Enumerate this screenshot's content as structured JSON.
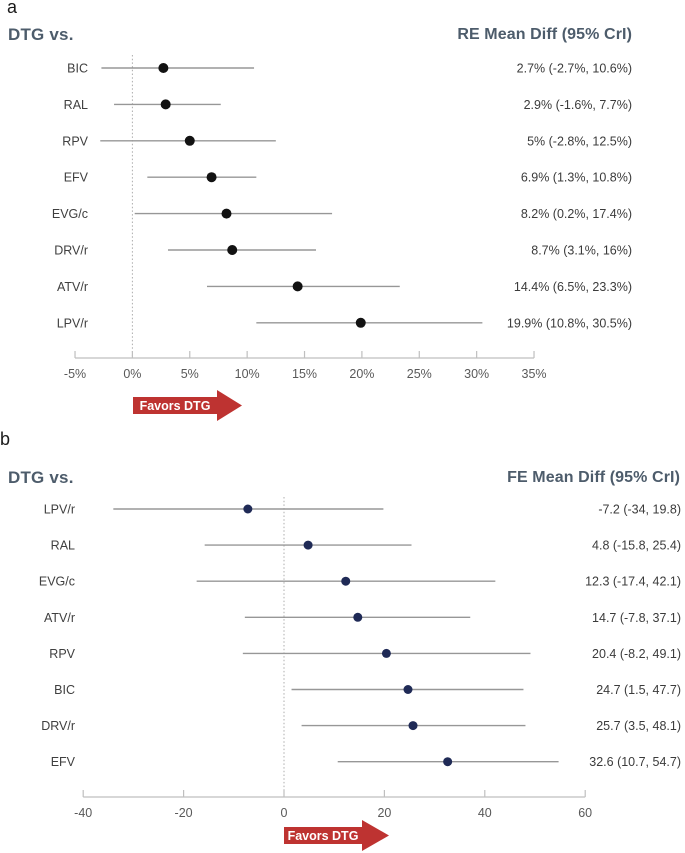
{
  "chart_data": [
    {
      "id": "a",
      "type": "scatter",
      "panel_label": "a",
      "title": "DTG vs.",
      "header": "RE Mean Diff (95% CrI)",
      "favors_label": "Favors DTG",
      "xlim": [
        -5,
        35
      ],
      "tick_labels": [
        "-5%",
        "0%",
        "5%",
        "10%",
        "15%",
        "20%",
        "25%",
        "30%",
        "35%"
      ],
      "zero_line": 0,
      "legend_position": "none",
      "grid": false,
      "rows": [
        {
          "label": "BIC",
          "mean": 2.7,
          "lo": -2.7,
          "hi": 10.6,
          "value_text": "2.7% (-2.7%, 10.6%)"
        },
        {
          "label": "RAL",
          "mean": 2.9,
          "lo": -1.6,
          "hi": 7.7,
          "value_text": "2.9% (-1.6%, 7.7%)"
        },
        {
          "label": "RPV",
          "mean": 5.0,
          "lo": -2.8,
          "hi": 12.5,
          "value_text": "5% (-2.8%, 12.5%)"
        },
        {
          "label": "EFV",
          "mean": 6.9,
          "lo": 1.3,
          "hi": 10.8,
          "value_text": "6.9% (1.3%, 10.8%)"
        },
        {
          "label": "EVG/c",
          "mean": 8.2,
          "lo": 0.2,
          "hi": 17.4,
          "value_text": "8.2% (0.2%, 17.4%)"
        },
        {
          "label": "DRV/r",
          "mean": 8.7,
          "lo": 3.1,
          "hi": 16.0,
          "value_text": "8.7% (3.1%, 16%)"
        },
        {
          "label": "ATV/r",
          "mean": 14.4,
          "lo": 6.5,
          "hi": 23.3,
          "value_text": "14.4% (6.5%, 23.3%)"
        },
        {
          "label": "LPV/r",
          "mean": 19.9,
          "lo": 10.8,
          "hi": 30.5,
          "value_text": "19.9% (10.8%, 30.5%)"
        }
      ]
    },
    {
      "id": "b",
      "type": "scatter",
      "panel_label": "b",
      "title": "DTG vs.",
      "header": "FE Mean Diff (95% CrI)",
      "favors_label": "Favors DTG",
      "xlim": [
        -40,
        60
      ],
      "tick_labels": [
        "-40",
        "-20",
        "0",
        "20",
        "40",
        "60"
      ],
      "zero_line": 0,
      "legend_position": "none",
      "grid": false,
      "rows": [
        {
          "label": "LPV/r",
          "mean": -7.2,
          "lo": -34.0,
          "hi": 19.8,
          "value_text": "-7.2 (-34, 19.8)"
        },
        {
          "label": "RAL",
          "mean": 4.8,
          "lo": -15.8,
          "hi": 25.4,
          "value_text": "4.8 (-15.8, 25.4)"
        },
        {
          "label": "EVG/c",
          "mean": 12.3,
          "lo": -17.4,
          "hi": 42.1,
          "value_text": "12.3 (-17.4, 42.1)"
        },
        {
          "label": "ATV/r",
          "mean": 14.7,
          "lo": -7.8,
          "hi": 37.1,
          "value_text": "14.7 (-7.8, 37.1)"
        },
        {
          "label": "RPV",
          "mean": 20.4,
          "lo": -8.2,
          "hi": 49.1,
          "value_text": "20.4 (-8.2, 49.1)"
        },
        {
          "label": "BIC",
          "mean": 24.7,
          "lo": 1.5,
          "hi": 47.7,
          "value_text": "24.7 (1.5, 47.7)"
        },
        {
          "label": "DRV/r",
          "mean": 25.7,
          "lo": 3.5,
          "hi": 48.1,
          "value_text": "25.7 (3.5, 48.1)"
        },
        {
          "label": "EFV",
          "mean": 32.6,
          "lo": 10.7,
          "hi": 54.7,
          "value_text": "32.6 (10.7, 54.7)"
        }
      ]
    }
  ],
  "colors": {
    "heading": "#4D5C6B",
    "panel_label_text": "#1a1a1a",
    "arrow_red": "#BE3331",
    "arrow_text": "#FFFFFF",
    "marker_a": "#121212",
    "marker_b": "#1F2A56",
    "ci_line": "#979797",
    "axis_line": "#BFBFBF",
    "zero_line": "#ADADAD",
    "tick_text": "#595959",
    "label_text": "#3F3F3F",
    "value_text": "#3B3B3B"
  }
}
